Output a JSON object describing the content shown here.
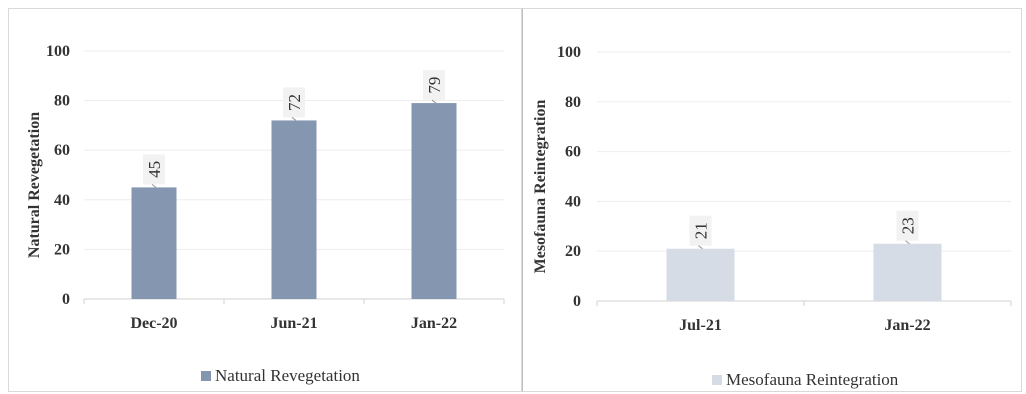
{
  "chart_data": [
    {
      "type": "bar",
      "categories": [
        "Dec-20",
        "Jun-21",
        "Jan-22"
      ],
      "series": [
        {
          "name": "Natural Revegetation",
          "values": [
            45,
            72,
            79
          ]
        }
      ],
      "ylabel": "Natural Revegetation",
      "xlabel": "",
      "ylim": [
        0,
        100
      ],
      "yticks": [
        0,
        20,
        40,
        60,
        80,
        100
      ],
      "color": "#8496b0",
      "legend": "bottom",
      "grid": true
    },
    {
      "type": "bar",
      "categories": [
        "Jul-21",
        "Jan-22"
      ],
      "series": [
        {
          "name": "Mesofauna Reintegration",
          "values": [
            21,
            23
          ]
        }
      ],
      "ylabel": "Mesofauna Reintegration",
      "xlabel": "",
      "ylim": [
        0,
        100
      ],
      "yticks": [
        0,
        20,
        40,
        60,
        80,
        100
      ],
      "color": "#d6dce5",
      "legend": "bottom",
      "grid": true
    }
  ]
}
